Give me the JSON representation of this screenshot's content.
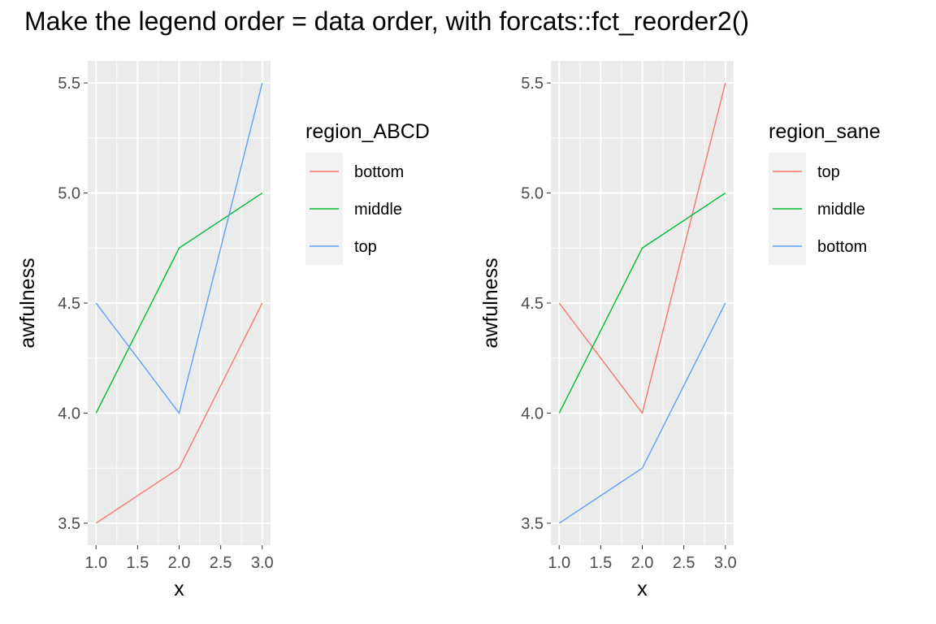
{
  "title": "Make the legend order = data order, with forcats::fct_reorder2()",
  "chart_data": [
    {
      "type": "line",
      "xlabel": "x",
      "ylabel": "awfulness",
      "xlim": [
        1.0,
        3.0
      ],
      "ylim": [
        3.5,
        5.5
      ],
      "x_ticks": [
        "1.0",
        "1.5",
        "2.0",
        "2.5",
        "3.0"
      ],
      "y_ticks": [
        "3.5",
        "4.0",
        "4.5",
        "5.0",
        "5.5"
      ],
      "grid": true,
      "legend": {
        "title": "region_ABCD",
        "placement": "right",
        "entries": [
          {
            "label": "bottom",
            "color": "#F8766D"
          },
          {
            "label": "middle",
            "color": "#00BA38"
          },
          {
            "label": "top",
            "color": "#619CFF"
          }
        ]
      },
      "x": [
        1,
        2,
        3
      ],
      "series": [
        {
          "name": "bottom",
          "color": "#F8766D",
          "values": [
            3.5,
            3.75,
            4.5
          ]
        },
        {
          "name": "middle",
          "color": "#00BA38",
          "values": [
            4.0,
            4.75,
            5.0
          ]
        },
        {
          "name": "top",
          "color": "#619CFF",
          "values": [
            4.5,
            4.0,
            5.5
          ]
        }
      ]
    },
    {
      "type": "line",
      "xlabel": "x",
      "ylabel": "awfulness",
      "xlim": [
        1.0,
        3.0
      ],
      "ylim": [
        3.5,
        5.5
      ],
      "x_ticks": [
        "1.0",
        "1.5",
        "2.0",
        "2.5",
        "3.0"
      ],
      "y_ticks": [
        "3.5",
        "4.0",
        "4.5",
        "5.0",
        "5.5"
      ],
      "grid": true,
      "legend": {
        "title": "region_sane",
        "placement": "right",
        "entries": [
          {
            "label": "top",
            "color": "#F8766D"
          },
          {
            "label": "middle",
            "color": "#00BA38"
          },
          {
            "label": "bottom",
            "color": "#619CFF"
          }
        ]
      },
      "x": [
        1,
        2,
        3
      ],
      "series": [
        {
          "name": "top",
          "color": "#F8766D",
          "values": [
            4.5,
            4.0,
            5.5
          ]
        },
        {
          "name": "middle",
          "color": "#00BA38",
          "values": [
            4.0,
            4.75,
            5.0
          ]
        },
        {
          "name": "bottom",
          "color": "#619CFF",
          "values": [
            3.5,
            3.75,
            4.5
          ]
        }
      ]
    }
  ]
}
